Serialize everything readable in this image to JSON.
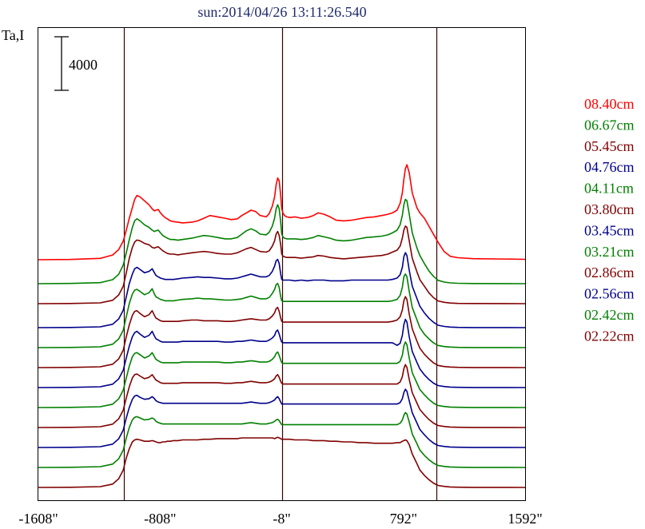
{
  "chart_data": {
    "type": "line",
    "title": "sun:2014/04/26 13:11:26.540",
    "ylabel": "Ta,I",
    "scale_bar_label": "4000",
    "x_tick_labels": [
      "-1608\"",
      "-808\"",
      "-8\"",
      "792\"",
      "1592\""
    ],
    "x_ticks": [
      -1608,
      -808,
      -8,
      792,
      1592
    ],
    "xlim": [
      -1608,
      1592
    ],
    "limb_markers_arcsec": [
      -1048,
      -8,
      1008
    ],
    "x_profile": [
      -1608,
      -1400,
      -1200,
      -1120,
      -1080,
      -1050,
      -1030,
      -1010,
      -990,
      -975,
      -960,
      -940,
      -910,
      -880,
      -860,
      -845,
      -835,
      -820,
      -805,
      -790,
      -775,
      -760,
      -740,
      -720,
      -690,
      -660,
      -600,
      -560,
      -520,
      -480,
      -430,
      -380,
      -340,
      -300,
      -270,
      -240,
      -210,
      -180,
      -150,
      -110,
      -90,
      -70,
      -55,
      -45,
      -35,
      -25,
      -15,
      -8,
      0,
      10,
      25,
      45,
      80,
      120,
      160,
      200,
      230,
      270,
      310,
      350,
      400,
      450,
      500,
      550,
      600,
      650,
      690,
      720,
      750,
      770,
      785,
      795,
      805,
      815,
      830,
      850,
      880,
      900,
      930,
      960,
      990,
      1020,
      1060,
      1100,
      1150,
      1250,
      1592
    ],
    "series": [
      {
        "name": "08.40cm",
        "color": "#ff0000",
        "offset": 3.3,
        "profile": [
          0,
          20,
          100,
          350,
          750,
          1400,
          2200,
          3100,
          3900,
          4500,
          4800,
          4700,
          4400,
          4100,
          3800,
          3650,
          3700,
          3750,
          3500,
          3300,
          3150,
          3050,
          2900,
          2850,
          2800,
          2750,
          2800,
          2900,
          3100,
          3300,
          3200,
          3100,
          3000,
          3050,
          3300,
          3500,
          3700,
          3600,
          3300,
          3200,
          3450,
          4000,
          4700,
          5600,
          6100,
          5900,
          4800,
          3800,
          3500,
          3300,
          3200,
          3150,
          3200,
          3100,
          3150,
          3300,
          3500,
          3400,
          3200,
          2950,
          2900,
          2950,
          3050,
          3150,
          3200,
          3300,
          3400,
          3500,
          3700,
          4200,
          5000,
          6000,
          6800,
          7100,
          6500,
          5000,
          3900,
          3500,
          3100,
          2500,
          1900,
          1300,
          600,
          250,
          150,
          80,
          30
        ]
      },
      {
        "name": "06.67cm",
        "color": "#008000",
        "offset": 3.0,
        "profile": [
          0,
          15,
          80,
          300,
          700,
          1400,
          2300,
          3300,
          4200,
          4700,
          4850,
          4700,
          4400,
          4200,
          4000,
          3900,
          3950,
          4000,
          3800,
          3600,
          3500,
          3400,
          3300,
          3300,
          3250,
          3300,
          3400,
          3500,
          3600,
          3550,
          3450,
          3350,
          3350,
          3450,
          3700,
          3950,
          4100,
          3950,
          3700,
          3650,
          3850,
          4300,
          4900,
          5600,
          5900,
          5600,
          4600,
          3700,
          3500,
          3400,
          3350,
          3350,
          3350,
          3300,
          3350,
          3450,
          3600,
          3500,
          3400,
          3250,
          3200,
          3250,
          3350,
          3450,
          3500,
          3550,
          3650,
          3800,
          4000,
          4400,
          5100,
          5900,
          6300,
          6200,
          5200,
          3800,
          2700,
          2100,
          1500,
          950,
          550,
          250,
          120,
          60,
          30,
          10,
          0
        ]
      },
      {
        "name": "05.45cm",
        "color": "#800000",
        "offset": 2.75,
        "profile": [
          0,
          10,
          60,
          250,
          650,
          1300,
          2300,
          3400,
          4200,
          4600,
          4750,
          4700,
          4500,
          4400,
          4200,
          4150,
          4200,
          4250,
          4100,
          3950,
          3850,
          3750,
          3700,
          3700,
          3650,
          3700,
          3800,
          3850,
          3900,
          3850,
          3750,
          3700,
          3700,
          3800,
          3950,
          4100,
          4200,
          4050,
          3900,
          3850,
          3950,
          4300,
          4700,
          5200,
          5400,
          5100,
          4400,
          3700,
          3550,
          3500,
          3450,
          3450,
          3450,
          3400,
          3450,
          3500,
          3600,
          3550,
          3450,
          3400,
          3350,
          3400,
          3450,
          3500,
          3550,
          3600,
          3700,
          3850,
          4000,
          4300,
          4900,
          5500,
          5800,
          5700,
          4700,
          3400,
          2400,
          1800,
          1300,
          800,
          450,
          200,
          100,
          50,
          20,
          10,
          0
        ]
      },
      {
        "name": "04.76cm",
        "color": "#00008b",
        "offset": 2.45,
        "profile": [
          0,
          10,
          60,
          250,
          650,
          1300,
          2300,
          3300,
          4000,
          4400,
          4500,
          4350,
          4100,
          4200,
          4400,
          4100,
          3900,
          3800,
          3700,
          3650,
          3600,
          3600,
          3600,
          3600,
          3650,
          3700,
          3750,
          3800,
          3750,
          3750,
          3700,
          3650,
          3650,
          3700,
          3800,
          3900,
          4000,
          3900,
          3800,
          3800,
          3900,
          4200,
          4600,
          5000,
          5100,
          4800,
          4000,
          3600,
          3550,
          3550,
          3550,
          3550,
          3500,
          3550,
          3500,
          3550,
          3550,
          3550,
          3500,
          3500,
          3500,
          3550,
          3550,
          3550,
          3550,
          3550,
          3550,
          3600,
          3700,
          3950,
          4500,
          5300,
          5600,
          5400,
          4300,
          3100,
          2200,
          1600,
          1100,
          700,
          400,
          180,
          90,
          40,
          20,
          5,
          0
        ]
      },
      {
        "name": "04.11cm",
        "color": "#008000",
        "offset": 2.2,
        "profile": [
          0,
          10,
          60,
          250,
          650,
          1300,
          2300,
          3300,
          4000,
          4300,
          4350,
          4200,
          3950,
          4100,
          4400,
          4000,
          3800,
          3700,
          3600,
          3550,
          3500,
          3500,
          3500,
          3500,
          3550,
          3600,
          3650,
          3700,
          3650,
          3650,
          3600,
          3550,
          3550,
          3600,
          3650,
          3750,
          3850,
          3750,
          3650,
          3650,
          3750,
          4050,
          4350,
          4700,
          4800,
          4500,
          3800,
          3500,
          3450,
          3450,
          3450,
          3450,
          3450,
          3450,
          3450,
          3450,
          3450,
          3450,
          3450,
          3450,
          3450,
          3450,
          3450,
          3450,
          3450,
          3450,
          3450,
          3500,
          3600,
          3900,
          4500,
          5300,
          5500,
          5300,
          4200,
          3000,
          2100,
          1500,
          1000,
          650,
          350,
          160,
          80,
          40,
          20,
          5,
          0
        ]
      },
      {
        "name": "03.80cm",
        "color": "#800000",
        "offset": 1.95,
        "profile": [
          0,
          10,
          60,
          250,
          650,
          1300,
          2300,
          3200,
          3900,
          4200,
          4250,
          4050,
          3800,
          3950,
          4250,
          3900,
          3700,
          3600,
          3500,
          3450,
          3450,
          3450,
          3450,
          3450,
          3450,
          3500,
          3550,
          3550,
          3500,
          3500,
          3500,
          3450,
          3450,
          3500,
          3550,
          3600,
          3650,
          3600,
          3550,
          3550,
          3650,
          3850,
          4100,
          4400,
          4500,
          4200,
          3700,
          3450,
          3400,
          3400,
          3400,
          3400,
          3400,
          3400,
          3400,
          3400,
          3400,
          3400,
          3400,
          3400,
          3400,
          3400,
          3400,
          3400,
          3400,
          3400,
          3400,
          3450,
          3550,
          3800,
          4300,
          5000,
          5300,
          5100,
          4000,
          2900,
          2000,
          1450,
          1000,
          650,
          350,
          160,
          80,
          40,
          20,
          5,
          0
        ]
      },
      {
        "name": "03.45cm",
        "color": "#00008b",
        "offset": 1.7,
        "profile": [
          0,
          10,
          60,
          250,
          650,
          1300,
          2200,
          3100,
          3800,
          4100,
          4200,
          4000,
          3750,
          3900,
          4200,
          3850,
          3650,
          3550,
          3450,
          3400,
          3400,
          3400,
          3400,
          3400,
          3400,
          3450,
          3450,
          3450,
          3450,
          3450,
          3450,
          3400,
          3400,
          3450,
          3450,
          3500,
          3550,
          3500,
          3450,
          3450,
          3550,
          3700,
          3900,
          4200,
          4300,
          4000,
          3600,
          3400,
          3350,
          3350,
          3350,
          3350,
          3350,
          3350,
          3350,
          3350,
          3350,
          3350,
          3350,
          3350,
          3350,
          3350,
          3350,
          3350,
          3350,
          3350,
          3350,
          3350,
          3150,
          3300,
          3900,
          4700,
          5100,
          4900,
          3800,
          2700,
          1900,
          1400,
          950,
          600,
          330,
          150,
          75,
          35,
          15,
          5,
          0
        ]
      },
      {
        "name": "03.21cm",
        "color": "#008000",
        "offset": 1.45,
        "profile": [
          0,
          10,
          60,
          250,
          650,
          1300,
          2200,
          3100,
          3800,
          4050,
          4100,
          3950,
          3700,
          3850,
          4100,
          3800,
          3600,
          3500,
          3400,
          3350,
          3350,
          3350,
          3350,
          3350,
          3350,
          3400,
          3400,
          3400,
          3400,
          3400,
          3400,
          3350,
          3350,
          3400,
          3400,
          3450,
          3500,
          3450,
          3400,
          3400,
          3450,
          3600,
          3800,
          4050,
          4150,
          3900,
          3550,
          3350,
          3300,
          3300,
          3300,
          3300,
          3300,
          3300,
          3300,
          3300,
          3300,
          3300,
          3300,
          3300,
          3300,
          3300,
          3300,
          3300,
          3300,
          3300,
          3300,
          3300,
          3300,
          3450,
          3900,
          4600,
          4900,
          4700,
          3700,
          2600,
          1850,
          1350,
          950,
          600,
          330,
          150,
          75,
          35,
          15,
          5,
          0
        ]
      },
      {
        "name": "02.86cm",
        "color": "#800000",
        "offset": 1.2,
        "profile": [
          0,
          10,
          60,
          250,
          650,
          1300,
          2200,
          3050,
          3700,
          3950,
          4000,
          3850,
          3650,
          3750,
          3950,
          3700,
          3550,
          3450,
          3350,
          3300,
          3300,
          3300,
          3300,
          3300,
          3300,
          3350,
          3350,
          3350,
          3350,
          3350,
          3350,
          3300,
          3300,
          3350,
          3350,
          3400,
          3450,
          3400,
          3350,
          3350,
          3400,
          3500,
          3650,
          3850,
          3950,
          3750,
          3450,
          3300,
          3250,
          3250,
          3250,
          3250,
          3250,
          3250,
          3250,
          3250,
          3250,
          3250,
          3250,
          3250,
          3250,
          3250,
          3250,
          3250,
          3250,
          3250,
          3250,
          3250,
          3250,
          3400,
          3800,
          4400,
          4700,
          4500,
          3600,
          2600,
          1850,
          1350,
          950,
          600,
          330,
          150,
          75,
          35,
          15,
          5,
          0
        ]
      },
      {
        "name": "02.56cm",
        "color": "#00008b",
        "offset": 0.95,
        "profile": [
          0,
          10,
          60,
          250,
          650,
          1300,
          2200,
          3000,
          3600,
          3850,
          3900,
          3750,
          3600,
          3650,
          3800,
          3650,
          3500,
          3400,
          3350,
          3300,
          3300,
          3300,
          3300,
          3300,
          3300,
          3300,
          3300,
          3300,
          3300,
          3300,
          3300,
          3300,
          3300,
          3300,
          3300,
          3350,
          3400,
          3350,
          3300,
          3300,
          3350,
          3450,
          3550,
          3700,
          3800,
          3650,
          3400,
          3250,
          3250,
          3250,
          3250,
          3250,
          3250,
          3250,
          3250,
          3250,
          3250,
          3250,
          3250,
          3250,
          3250,
          3250,
          3250,
          3250,
          3250,
          3250,
          3250,
          3250,
          3250,
          3350,
          3650,
          4100,
          4350,
          4200,
          3500,
          2600,
          1850,
          1350,
          950,
          600,
          330,
          150,
          75,
          35,
          15,
          5,
          0
        ]
      },
      {
        "name": "02.42cm",
        "color": "#008000",
        "offset": 0.7,
        "profile": [
          0,
          10,
          60,
          250,
          650,
          1300,
          2200,
          3000,
          3550,
          3750,
          3800,
          3700,
          3550,
          3600,
          3700,
          3600,
          3450,
          3350,
          3300,
          3250,
          3250,
          3250,
          3250,
          3250,
          3250,
          3250,
          3250,
          3250,
          3250,
          3250,
          3250,
          3250,
          3250,
          3250,
          3250,
          3300,
          3350,
          3300,
          3250,
          3250,
          3300,
          3350,
          3450,
          3550,
          3600,
          3500,
          3300,
          3200,
          3200,
          3200,
          3200,
          3200,
          3200,
          3200,
          3200,
          3200,
          3200,
          3200,
          3200,
          3200,
          3200,
          3200,
          3200,
          3200,
          3200,
          3200,
          3200,
          3200,
          3200,
          3300,
          3550,
          3900,
          4100,
          4000,
          3400,
          2500,
          1800,
          1300,
          900,
          580,
          320,
          150,
          75,
          35,
          15,
          5,
          0
        ]
      },
      {
        "name": "02.22cm",
        "color": "#800000",
        "offset": 0.45,
        "profile": [
          0,
          10,
          60,
          250,
          650,
          1300,
          2200,
          2900,
          3400,
          3550,
          3600,
          3550,
          3450,
          3450,
          3500,
          3450,
          3400,
          3350,
          3350,
          3400,
          3400,
          3450,
          3450,
          3500,
          3500,
          3550,
          3550,
          3550,
          3600,
          3600,
          3650,
          3650,
          3650,
          3650,
          3700,
          3700,
          3700,
          3700,
          3700,
          3700,
          3700,
          3700,
          3650,
          3700,
          3750,
          3700,
          3650,
          3600,
          3600,
          3600,
          3600,
          3600,
          3550,
          3550,
          3550,
          3500,
          3500,
          3500,
          3450,
          3450,
          3400,
          3400,
          3350,
          3350,
          3300,
          3300,
          3300,
          3300,
          3350,
          3350,
          3450,
          3500,
          3550,
          3500,
          3200,
          2500,
          1800,
          1300,
          900,
          580,
          320,
          150,
          75,
          35,
          15,
          5,
          0
        ]
      }
    ]
  }
}
